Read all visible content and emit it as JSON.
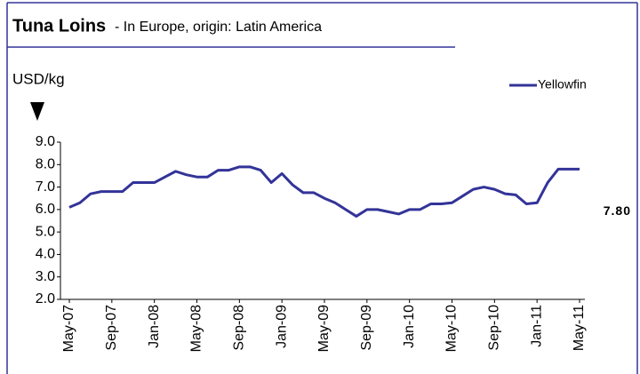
{
  "chart_data": {
    "type": "line",
    "title": "Tuna Loins",
    "subtitle": "- In Europe, origin: Latin America",
    "y_label": "USD/kg",
    "categories": [
      "May-07",
      null,
      null,
      null,
      "Sep-07",
      null,
      null,
      null,
      "Jan-08",
      null,
      null,
      null,
      "May-08",
      null,
      null,
      null,
      "Sep-08",
      null,
      null,
      null,
      "Jan-09",
      null,
      null,
      null,
      "May-09",
      null,
      null,
      null,
      "Sep-09",
      null,
      null,
      null,
      "Jan-10",
      null,
      null,
      null,
      "May-10",
      null,
      null,
      null,
      "Sep-10",
      null,
      null,
      null,
      "Jan-11",
      null,
      null,
      null,
      "May-11"
    ],
    "series": [
      {
        "name": "Yellowfin",
        "color": "#333399",
        "values": [
          6.1,
          6.3,
          6.7,
          6.8,
          6.8,
          6.8,
          7.2,
          7.2,
          7.2,
          7.45,
          7.7,
          7.55,
          7.45,
          7.45,
          7.75,
          7.75,
          7.9,
          7.9,
          7.75,
          7.2,
          7.6,
          7.1,
          6.75,
          6.75,
          6.5,
          6.3,
          6.0,
          5.7,
          6.0,
          6.0,
          5.9,
          5.8,
          6.0,
          6.0,
          6.25,
          6.25,
          6.3,
          6.6,
          6.9,
          7.0,
          6.9,
          6.7,
          6.65,
          6.25,
          6.3,
          7.2,
          7.8,
          7.8,
          7.8
        ],
        "value_labels": [
          null,
          null,
          null,
          null,
          null,
          null,
          null,
          null,
          null,
          null,
          null,
          null,
          null,
          null,
          null,
          null,
          null,
          null,
          null,
          null,
          null,
          null,
          null,
          null,
          null,
          null,
          null,
          null,
          null,
          null,
          null,
          null,
          null,
          null,
          null,
          null,
          null,
          null,
          null,
          null,
          null,
          null,
          null,
          null,
          null,
          null,
          null,
          null,
          "7.80"
        ]
      }
    ],
    "ylim": [
      2,
      9
    ],
    "yticks": [
      {
        "value": 2,
        "label": "2.0"
      },
      {
        "value": 3,
        "label": "3.0"
      },
      {
        "value": 4,
        "label": "4.0"
      },
      {
        "value": 5,
        "label": "5.0"
      },
      {
        "value": 6,
        "label": "6.0"
      },
      {
        "value": 7,
        "label": "7.0"
      },
      {
        "value": 8,
        "label": "8.0"
      },
      {
        "value": 9,
        "label": "9.0"
      }
    ],
    "legend": "top-right"
  }
}
